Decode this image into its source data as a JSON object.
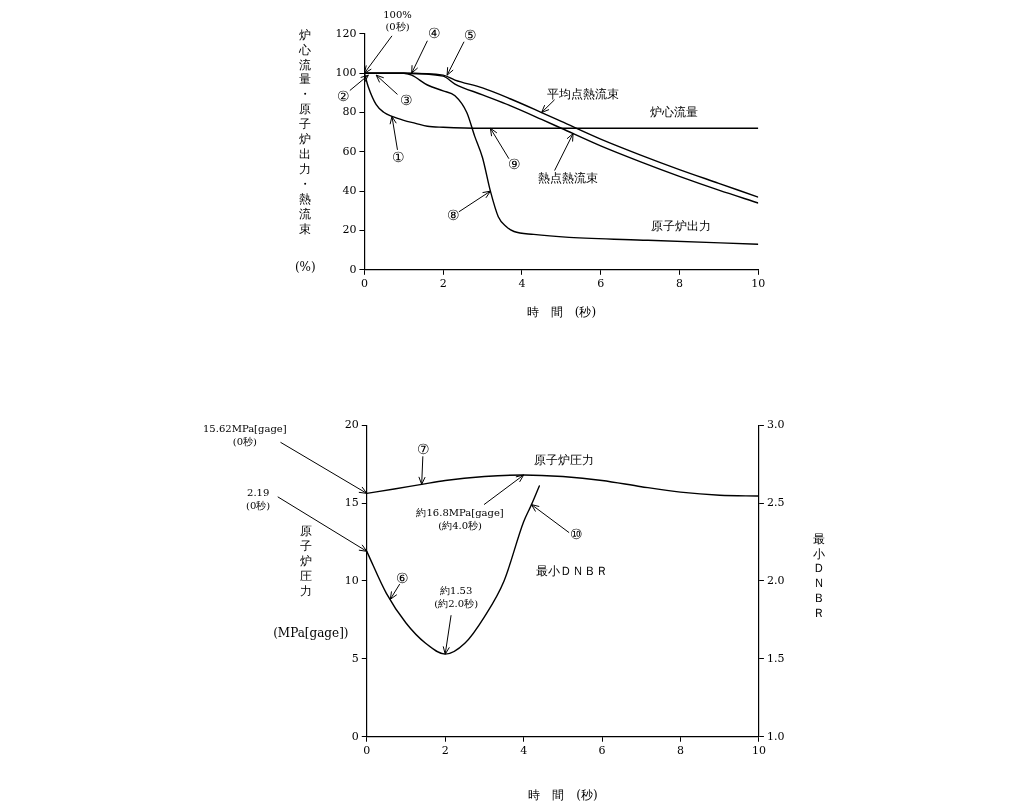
{
  "chart_data": [
    {
      "type": "line",
      "xlabel": "時　間　(秒)",
      "ylabel": "炉心流量・原子炉出力・熱流束\n(%)",
      "xlim": [
        0,
        10
      ],
      "xticks": [
        0,
        2,
        4,
        6,
        8,
        10
      ],
      "ylim": [
        0,
        120
      ],
      "yticks": [
        0,
        20,
        40,
        60,
        80,
        100,
        120
      ],
      "grid": false,
      "legend": false,
      "line_style": "solid",
      "marker": "none",
      "series": [
        {
          "name": "炉心流量",
          "color": "#000000",
          "x": [
            0,
            0.1,
            0.3,
            0.5,
            0.7,
            1,
            1.3,
            1.6,
            2,
            3,
            10
          ],
          "values": [
            100,
            93,
            84,
            80,
            78,
            76,
            74.5,
            73,
            72.5,
            72,
            72
          ]
        },
        {
          "name": "平均点熱流束",
          "color": "#000000",
          "x": [
            0,
            1,
            2,
            2.3,
            3,
            3.7,
            4.5,
            5,
            6,
            7,
            8,
            9,
            10
          ],
          "values": [
            100,
            100,
            99,
            96.5,
            92.5,
            87,
            80,
            75.5,
            66.5,
            58.5,
            51,
            44,
            37
          ]
        },
        {
          "name": "熱点熱流束",
          "color": "#000000",
          "x": [
            0,
            1,
            2,
            2.3,
            3,
            3.7,
            4.5,
            5,
            6,
            7,
            8,
            9,
            10
          ],
          "values": [
            100,
            100,
            98.5,
            94.5,
            89,
            83.5,
            76.5,
            72,
            63,
            55,
            47.5,
            40.5,
            34
          ]
        },
        {
          "name": "原子炉出力",
          "color": "#000000",
          "x": [
            0,
            0.5,
            1,
            1.2,
            1.6,
            2,
            2.3,
            2.6,
            2.8,
            3,
            3.2,
            3.4,
            3.6,
            3.8,
            4.3,
            5.2,
            7.2,
            10
          ],
          "values": [
            100,
            100,
            100,
            99,
            94,
            91,
            88.5,
            80,
            68,
            57,
            40,
            27,
            22,
            19.5,
            18,
            16.5,
            15,
            13
          ]
        }
      ],
      "annotations": [
        {
          "text": "100%\n(0秒)",
          "x": 0,
          "y": 100
        },
        {
          "text": "①",
          "x": 0.7,
          "y": 78
        },
        {
          "text": "②",
          "x": 0.1,
          "y": 99
        },
        {
          "text": "③",
          "x": 0.3,
          "y": 99
        },
        {
          "text": "④",
          "x": 1.2,
          "y": 100
        },
        {
          "text": "⑤",
          "x": 2.1,
          "y": 99
        },
        {
          "text": "⑧",
          "x": 3.2,
          "y": 40
        },
        {
          "text": "⑨",
          "x": 3.2,
          "y": 72
        }
      ]
    },
    {
      "type": "line",
      "xlabel": "時　間　(秒)",
      "ylabel": "原子炉圧力\n(MPa[gage])",
      "y2label": "最小ＤＮＢＲ",
      "xlim": [
        0,
        10
      ],
      "xticks": [
        0,
        2,
        4,
        6,
        8,
        10
      ],
      "ylim": [
        0,
        20
      ],
      "yticks": [
        0,
        5,
        10,
        15,
        20
      ],
      "y2lim": [
        1,
        3
      ],
      "y2ticks": [
        {
          "value": 1,
          "label": "1.0"
        },
        {
          "value": 1.5,
          "label": "1.5"
        },
        {
          "value": 2,
          "label": "2.0"
        },
        {
          "value": 2.5,
          "label": "2.5"
        },
        {
          "value": 3,
          "label": "3.0"
        }
      ],
      "grid": false,
      "legend": false,
      "line_style": "solid",
      "marker": "none",
      "series": [
        {
          "name": "原子炉圧力",
          "color": "#000000",
          "x": [
            0,
            0.7,
            1.4,
            2,
            3,
            4,
            5,
            6,
            7,
            8,
            9,
            10
          ],
          "values": [
            15.62,
            15.9,
            16.2,
            16.45,
            16.7,
            16.8,
            16.7,
            16.45,
            16.05,
            15.7,
            15.5,
            15.45
          ]
        },
        {
          "name": "最小ＤＮＢＲ",
          "color": "#000000",
          "axis": "y2",
          "x": [
            0,
            0.5,
            1,
            1.5,
            2,
            2.5,
            3,
            3.5,
            4,
            4.2,
            4.4
          ],
          "values": [
            2.19,
            1.92,
            1.73,
            1.6,
            1.53,
            1.6,
            1.77,
            2.0,
            2.38,
            2.49,
            2.61
          ]
        }
      ],
      "annotations": [
        {
          "text": "15.62MPa[gage]\n(0秒)",
          "x": 0,
          "y": 15.62
        },
        "2.19\n(0秒)",
        {
          "text": "⑦",
          "x": 1.4,
          "y": 16.2
        },
        {
          "text": "約16.8MPa[gage]\n(約4.0秒)",
          "x": 4.0,
          "y": 16.8
        },
        "⑥",
        "約1.53\n(約2.0秒)",
        "⑩"
      ]
    }
  ]
}
